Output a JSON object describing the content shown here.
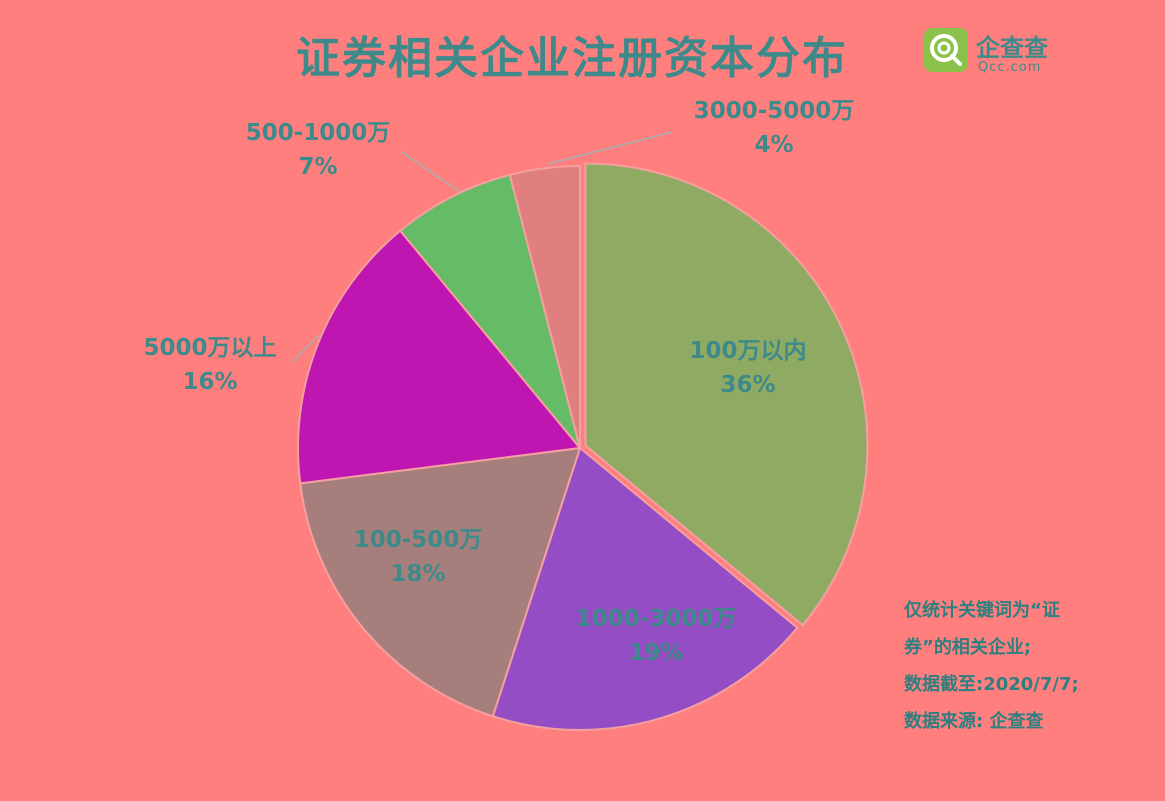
{
  "title": "证券相关企业注册资本分布",
  "logo": {
    "cn": "企查查",
    "en": "Qcc.com",
    "color": "#8bc34a"
  },
  "chart_data": {
    "type": "pie",
    "title": "证券相关企业注册资本分布",
    "slices": [
      {
        "label": "100万以内",
        "value": 36,
        "percent_text": "36%",
        "color": "#8faa62"
      },
      {
        "label": "1000-3000万",
        "value": 19,
        "percent_text": "19%",
        "color": "#944dc4"
      },
      {
        "label": "100-500万",
        "value": 18,
        "percent_text": "18%",
        "color": "#a67f7c"
      },
      {
        "label": "5000万以上",
        "value": 16,
        "percent_text": "16%",
        "color": "#bf16b1"
      },
      {
        "label": "500-1000万",
        "value": 7,
        "percent_text": "7%",
        "color": "#66bb66"
      },
      {
        "label": "3000-5000万",
        "value": 4,
        "percent_text": "4%",
        "color": "#e07f7f"
      }
    ]
  },
  "notes": [
    "仅统计关键词为“证",
    "券”的相关企业;",
    "数据截至:2020/7/7;",
    "数据来源: 企查查"
  ]
}
